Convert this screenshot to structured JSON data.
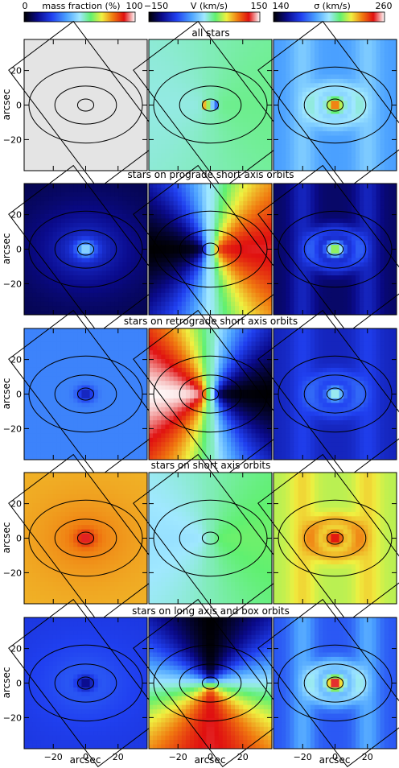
{
  "colorbars": [
    {
      "min": "0",
      "label": "mass fraction (%)",
      "max": "100"
    },
    {
      "min": "−150",
      "label": "V (km/s)",
      "max": "150"
    },
    {
      "min": "140",
      "label": "σ (km/s)",
      "max": "260"
    }
  ],
  "rows": [
    {
      "title": "all stars"
    },
    {
      "title": "stars on prograde short axis orbits"
    },
    {
      "title": "stars on retrograde short axis orbits"
    },
    {
      "title": "stars on short axis orbits"
    },
    {
      "title": "stars on long axis and box orbits"
    }
  ],
  "axes": {
    "ylabel": "arcsec",
    "xlabel": "arcsec",
    "yticks": [
      "20",
      "0",
      "−20"
    ],
    "xticks": [
      "−20",
      "0",
      "20"
    ]
  },
  "colors": {
    "scale": [
      "#000000",
      "#0a0a8a",
      "#2040f0",
      "#4aa0ff",
      "#a0e8ff",
      "#60f070",
      "#f0f040",
      "#f07a10",
      "#e01010",
      "#ffffff"
    ]
  },
  "chart_data": {
    "type": "heatmap",
    "grid": {
      "rows": 5,
      "cols": 3
    },
    "columns": [
      "mass fraction (%)",
      "V (km/s)",
      "σ (km/s)"
    ],
    "column_ranges": [
      [
        0,
        100
      ],
      [
        -150,
        150
      ],
      [
        140,
        260
      ]
    ],
    "x_range": [
      -38,
      38
    ],
    "y_range": [
      -38,
      38
    ],
    "panels": [
      [
        {
          "base": 100
        },
        {
          "base": 0,
          "left": 10,
          "right": -10,
          "center_plus": 150,
          "center_minus": -150
        },
        {
          "base": 180,
          "center": 240,
          "ring": 200
        }
      ],
      [
        {
          "base": 5,
          "center": 45,
          "ring": 25
        },
        {
          "base": 0,
          "left": 120,
          "right": -150
        },
        {
          "base": 150,
          "center": 220,
          "ring": 175
        }
      ],
      [
        {
          "base": 30,
          "center": 15
        },
        {
          "base": 0,
          "left": -150,
          "right": 150
        },
        {
          "base": 160,
          "center": 200,
          "ring": 175
        }
      ],
      [
        {
          "base": 72,
          "center": 92,
          "ring": 80
        },
        {
          "base": 0,
          "left": 20,
          "right": -20
        },
        {
          "base": 215,
          "center": 250,
          "ring": 235
        }
      ],
      [
        {
          "base": 20,
          "center": 10,
          "ring": 28
        },
        {
          "base": 0,
          "top": -150,
          "bottom": 120
        },
        {
          "base": 170,
          "center": 260,
          "ring": 200
        }
      ]
    ]
  }
}
